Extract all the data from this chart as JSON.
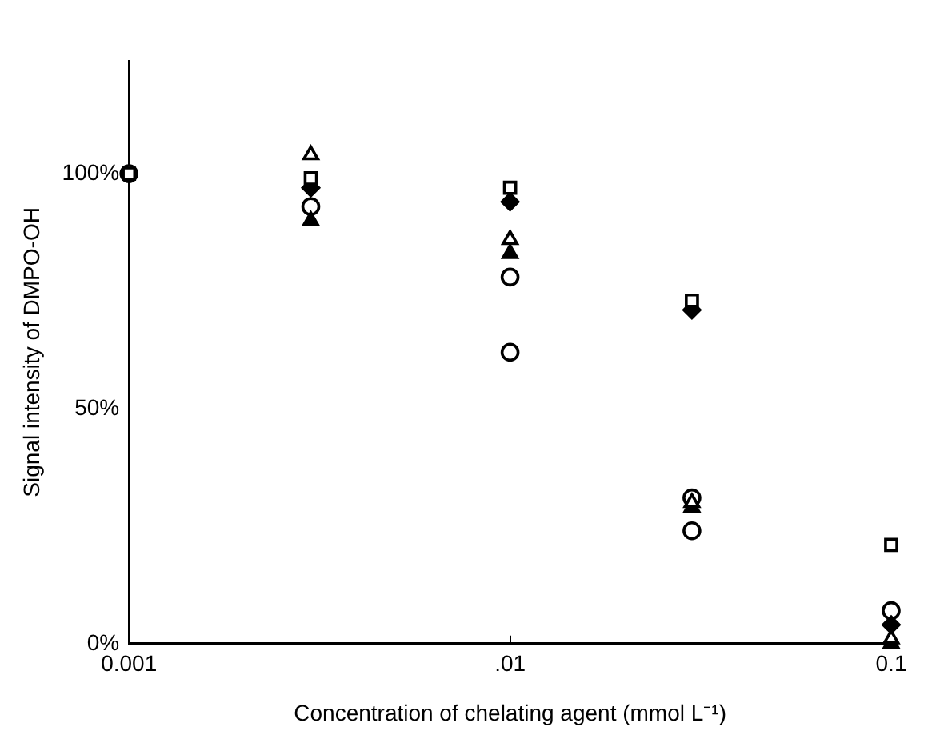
{
  "chart_data": {
    "type": "scatter",
    "xlabel": "Concentration of chelating agent (mmol L⁻¹)",
    "ylabel": "Signal intensity of DMPO-OH",
    "log": "x",
    "grid": false,
    "x": [
      0.001,
      0.003,
      0.01,
      0.03,
      0.1
    ],
    "xlim": [
      0.001,
      0.1
    ],
    "xticks": [
      {
        "value": 0.001,
        "label": "0.001"
      },
      {
        "value": 0.01,
        "label": ".01"
      },
      {
        "value": 0.1,
        "label": "0.1"
      }
    ],
    "ylim": [
      0,
      124
    ],
    "yticks": [
      {
        "value": 0,
        "label": "0%"
      },
      {
        "value": 50,
        "label": "50%"
      },
      {
        "value": 100,
        "label": "100%"
      }
    ],
    "series": [
      {
        "color": "#ffffff",
        "marker": "square",
        "values": [
          100,
          99,
          97,
          73,
          21
        ]
      },
      {
        "color": "#000000",
        "marker": "diamond",
        "values": [
          null,
          97,
          94,
          71,
          4
        ]
      },
      {
        "color": "#ffffff",
        "marker": "triangle",
        "values": [
          null,
          104,
          86,
          30,
          1
        ]
      },
      {
        "color": "#000000",
        "marker": "triangle",
        "values": [
          null,
          90,
          83,
          29,
          0
        ]
      },
      {
        "color": "#ffffff",
        "marker": "circle",
        "values": [
          100,
          93,
          62,
          31,
          7
        ]
      },
      {
        "color": "#ffffff",
        "marker": "circle",
        "values": [
          null,
          null,
          78,
          24,
          null
        ]
      }
    ]
  }
}
